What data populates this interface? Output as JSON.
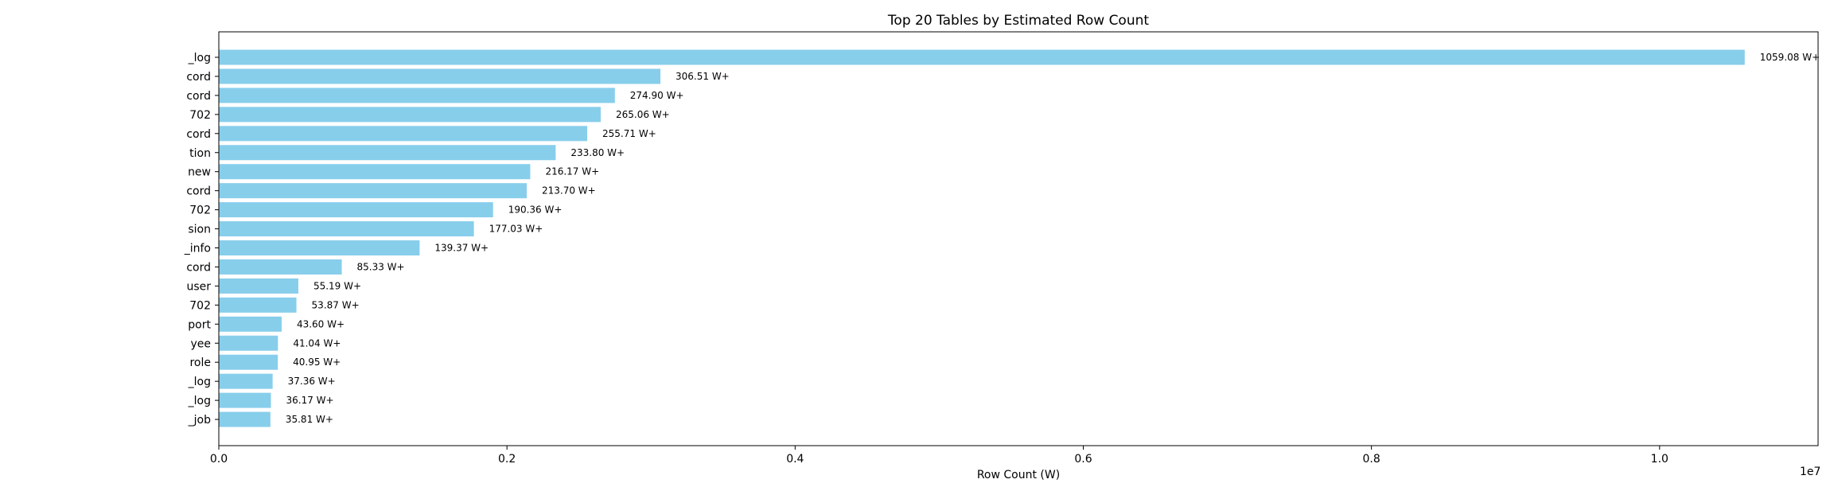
{
  "chart_data": {
    "type": "bar",
    "orientation": "horizontal",
    "title": "Top 20 Tables by Estimated Row Count",
    "xlabel": "Row Count (W)",
    "ylabel": "",
    "x_offset_text": "1e7",
    "xlim": [
      0,
      11100000
    ],
    "x_ticks": [
      0,
      2000000,
      4000000,
      6000000,
      8000000,
      10000000
    ],
    "x_tick_labels": [
      "0.0",
      "0.2",
      "0.4",
      "0.6",
      "0.8",
      "1.0"
    ],
    "grid": false,
    "bar_color": "#87ceeb",
    "categories": [
      "_log",
      "cord",
      "cord",
      "702",
      "cord",
      "tion",
      "new",
      "cord",
      "702",
      "sion",
      "_info",
      "cord",
      "user",
      "702",
      "port",
      "yee",
      "role",
      "_log",
      "_log",
      "_job"
    ],
    "values": [
      10590800,
      3065100,
      2749000,
      2650600,
      2557100,
      2338000,
      2161700,
      2137000,
      1903600,
      1770300,
      1393700,
      853300,
      551900,
      538700,
      436000,
      410400,
      409500,
      373600,
      361700,
      358100
    ],
    "value_labels": [
      "1059.08 W+",
      "306.51 W+",
      "274.90 W+",
      "265.06 W+",
      "255.71 W+",
      "233.80 W+",
      "216.17 W+",
      "213.70 W+",
      "190.36 W+",
      "177.03 W+",
      "139.37 W+",
      "85.33 W+",
      "55.19 W+",
      "53.87 W+",
      "43.60 W+",
      "41.04 W+",
      "40.95 W+",
      "37.36 W+",
      "36.17 W+",
      "35.81 W+"
    ]
  }
}
